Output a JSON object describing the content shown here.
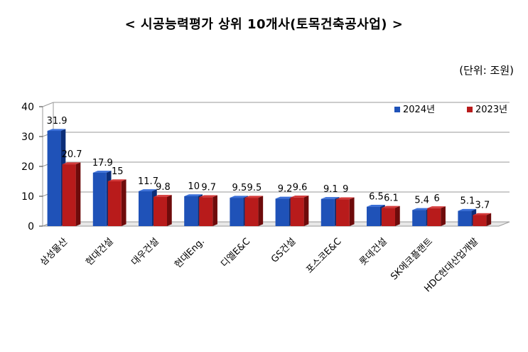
{
  "title": "< 시공능력평가 상위 10개사(토목건축공사업) >",
  "unit_label": "(단위: 조원)",
  "colors": {
    "s2024": "#1f52b8",
    "s2023": "#b81b1b"
  },
  "chart_data": {
    "type": "bar",
    "title": "< 시공능력평가 상위 10개사(토목건축공사업) >",
    "categories": [
      "삼성물산",
      "현대건설",
      "대우건설",
      "현대Eng.",
      "디엘E&C",
      "GS건설",
      "포스코E&C",
      "롯데건설",
      "SK에코플랜트",
      "HDC현대산업개발"
    ],
    "series": [
      {
        "name": "2024년",
        "values": [
          31.9,
          17.9,
          11.7,
          10,
          9.5,
          9.2,
          9.1,
          6.5,
          5.4,
          5.1
        ],
        "labels": [
          "31.9",
          "17.9",
          "11.7",
          "10",
          "9.5",
          "9.2",
          "9.1",
          "6.5",
          "5.4",
          "5.1"
        ]
      },
      {
        "name": "2023년",
        "values": [
          20.7,
          15,
          9.8,
          9.7,
          9.5,
          9.6,
          9,
          6.1,
          6,
          3.7
        ],
        "labels": [
          "20.7",
          "15",
          "9.8",
          "9.7",
          "9.5",
          "9.6",
          "9",
          "6.1",
          "6",
          "3.7"
        ]
      }
    ],
    "ylim": [
      0,
      40
    ],
    "yticks": [
      "0",
      "10",
      "20",
      "30",
      "40"
    ],
    "grid": true,
    "legend": "top-right"
  }
}
